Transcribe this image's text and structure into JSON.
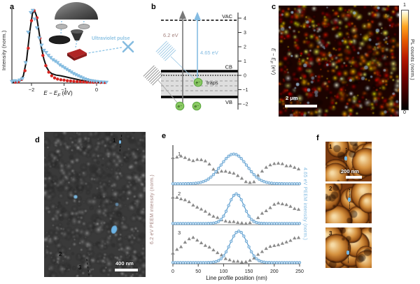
{
  "figure_labels": {
    "a": "a",
    "b": "b",
    "c": "c",
    "d": "d",
    "e": "e",
    "f": "f"
  },
  "panel_a": {
    "ylabel": "Intensity (norm.)",
    "xlabel_pre": "E − E",
    "xlabel_sub": "F",
    "xlabel_post": " (eV)",
    "inset_label": "Ultraviolet pulse"
  },
  "panel_b": {
    "vac": "VAC",
    "cb": "CB",
    "vb": "VB",
    "traps": "traps",
    "electron": "e⁻",
    "arrow_gray_label": "6.2 eV",
    "arrow_blue_label": "4.65 eV",
    "axis_label_pre": "E − E",
    "axis_label_sub": "F",
    "axis_label_post": " (eV)",
    "axis_ticks": [
      "4",
      "3",
      "2",
      "1",
      "0",
      "−1",
      "−2"
    ]
  },
  "panel_c": {
    "scalebar": "2 μm",
    "colorbar_top": "1",
    "colorbar_bottom": "0",
    "colorbar_label": "PL counts (norm.)"
  },
  "panel_d": {
    "marker1": "1",
    "marker2": "2",
    "marker3": "3",
    "scalebar": "400 nm"
  },
  "panel_f": {
    "label1": "1",
    "label2": "2",
    "label3": "3",
    "scalebar": "200 nm"
  },
  "colors": {
    "blue_series": "#8cc2e4",
    "red_series": "#d62420",
    "gray_series": "#8a8a8a",
    "rose_text": "#a5837f",
    "blue_text": "#85bce2",
    "electron_green": "#8ac963"
  },
  "chart_data": [
    {
      "panel": "a",
      "type": "line",
      "xlabel": "E − EF (eV)",
      "ylabel": "Intensity (norm.)",
      "xlim": [
        -2.65,
        0.35
      ],
      "ylim": [
        0,
        1.05
      ],
      "xticks": [
        -2,
        -1,
        0
      ],
      "series": [
        {
          "name": "fit-curve",
          "marker": "line",
          "color": "#111111",
          "points": [
            [
              -2.6,
              0.01
            ],
            [
              -2.45,
              0.015
            ],
            [
              -2.35,
              0.03
            ],
            [
              -2.25,
              0.1
            ],
            [
              -2.15,
              0.32
            ],
            [
              -2.05,
              0.72
            ],
            [
              -1.97,
              0.96
            ],
            [
              -1.91,
              1.0
            ],
            [
              -1.85,
              0.93
            ],
            [
              -1.78,
              0.74
            ],
            [
              -1.7,
              0.5
            ],
            [
              -1.62,
              0.33
            ],
            [
              -1.54,
              0.22
            ],
            [
              -1.46,
              0.16
            ],
            [
              -1.38,
              0.13
            ],
            [
              -1.25,
              0.11
            ],
            [
              -1.1,
              0.1
            ],
            [
              -0.95,
              0.085
            ],
            [
              -0.8,
              0.07
            ],
            [
              -0.65,
              0.055
            ],
            [
              -0.5,
              0.04
            ],
            [
              -0.35,
              0.03
            ],
            [
              -0.2,
              0.02
            ],
            [
              -0.05,
              0.012
            ],
            [
              0.15,
              0.008
            ],
            [
              0.3,
              0.006
            ]
          ]
        },
        {
          "name": "red-circles",
          "marker": "circle",
          "color": "#d62420",
          "points": [
            [
              -2.5,
              0.012
            ],
            [
              -2.4,
              0.02
            ],
            [
              -2.3,
              0.05
            ],
            [
              -2.2,
              0.17
            ],
            [
              -2.1,
              0.48
            ],
            [
              -2.0,
              0.86
            ],
            [
              -1.92,
              1.0
            ],
            [
              -1.83,
              0.9
            ],
            [
              -1.74,
              0.62
            ],
            [
              -1.65,
              0.38
            ],
            [
              -1.56,
              0.24
            ],
            [
              -1.47,
              0.15
            ],
            [
              -1.38,
              0.1
            ],
            [
              -1.29,
              0.07
            ],
            [
              -1.2,
              0.055
            ],
            [
              -1.1,
              0.045
            ],
            [
              -1.0,
              0.04
            ],
            [
              -0.9,
              0.032
            ],
            [
              -0.8,
              0.028
            ],
            [
              -0.7,
              0.024
            ],
            [
              -0.6,
              0.02
            ],
            [
              -0.5,
              0.018
            ],
            [
              -0.4,
              0.015
            ],
            [
              -0.3,
              0.012
            ],
            [
              -0.2,
              0.012
            ],
            [
              -0.1,
              0.01
            ],
            [
              0.0,
              0.01
            ],
            [
              0.12,
              0.008
            ],
            [
              0.25,
              0.008
            ]
          ]
        },
        {
          "name": "blue-triangles",
          "marker": "triangle-down",
          "color": "#8cc2e4",
          "points": [
            [
              -2.6,
              0.02
            ],
            [
              -2.52,
              0.03
            ],
            [
              -2.44,
              0.025
            ],
            [
              -2.36,
              0.04
            ],
            [
              -2.28,
              0.06
            ],
            [
              -2.18,
              0.28
            ],
            [
              -2.1,
              0.7
            ],
            [
              -2.02,
              0.97
            ],
            [
              -1.96,
              1.0
            ],
            [
              -1.9,
              0.88
            ],
            [
              -1.83,
              0.76
            ],
            [
              -1.76,
              0.62
            ],
            [
              -1.69,
              0.52
            ],
            [
              -1.62,
              0.45
            ],
            [
              -1.55,
              0.42
            ],
            [
              -1.48,
              0.38
            ],
            [
              -1.41,
              0.35
            ],
            [
              -1.34,
              0.32
            ],
            [
              -1.27,
              0.3
            ],
            [
              -1.2,
              0.28
            ],
            [
              -1.13,
              0.25
            ],
            [
              -1.06,
              0.23
            ],
            [
              -0.99,
              0.21
            ],
            [
              -0.92,
              0.19
            ],
            [
              -0.85,
              0.17
            ],
            [
              -0.78,
              0.15
            ],
            [
              -0.71,
              0.13
            ],
            [
              -0.64,
              0.115
            ],
            [
              -0.57,
              0.1
            ],
            [
              -0.5,
              0.085
            ],
            [
              -0.43,
              0.07
            ],
            [
              -0.36,
              0.055
            ],
            [
              -0.29,
              0.045
            ],
            [
              -0.22,
              0.035
            ],
            [
              -0.15,
              0.03
            ],
            [
              -0.08,
              0.025
            ],
            [
              0.0,
              0.02
            ],
            [
              0.1,
              0.015
            ],
            [
              0.2,
              0.012
            ],
            [
              0.3,
              0.01
            ]
          ]
        }
      ]
    },
    {
      "panel": "e",
      "type": "line-profiles",
      "xlabel": "Line profile position (nm)",
      "ylabel_left": "6.2 eV PEEM intensity (norm.)",
      "ylabel_right": "4.65 eV PEEM intensity (norm.)",
      "xlim": [
        0,
        250
      ],
      "xticks": [
        0,
        50,
        100,
        150,
        200,
        250
      ],
      "profiles": [
        {
          "label": "1",
          "gray": [
            [
              0,
              0.8
            ],
            [
              10,
              0.82
            ],
            [
              20,
              0.8
            ],
            [
              30,
              0.74
            ],
            [
              40,
              0.7
            ],
            [
              50,
              0.74
            ],
            [
              60,
              0.73
            ],
            [
              70,
              0.62
            ],
            [
              80,
              0.46
            ],
            [
              90,
              0.36
            ],
            [
              100,
              0.4
            ],
            [
              110,
              0.38
            ],
            [
              120,
              0.34
            ],
            [
              130,
              0.26
            ],
            [
              140,
              0.14
            ],
            [
              150,
              0.04
            ],
            [
              160,
              0.1
            ],
            [
              170,
              0.3
            ],
            [
              180,
              0.48
            ],
            [
              190,
              0.58
            ],
            [
              200,
              0.62
            ],
            [
              210,
              0.62
            ],
            [
              220,
              0.58
            ],
            [
              230,
              0.54
            ],
            [
              240,
              0.5
            ],
            [
              250,
              0.44
            ]
          ],
          "blue": {
            "center": 120,
            "sigma": 26,
            "amp": 0.85
          }
        },
        {
          "label": "2",
          "gray": [
            [
              0,
              0.78
            ],
            [
              10,
              0.76
            ],
            [
              20,
              0.72
            ],
            [
              30,
              0.66
            ],
            [
              40,
              0.58
            ],
            [
              50,
              0.5
            ],
            [
              60,
              0.42
            ],
            [
              70,
              0.34
            ],
            [
              80,
              0.26
            ],
            [
              90,
              0.18
            ],
            [
              100,
              0.12
            ],
            [
              110,
              0.09
            ],
            [
              120,
              0.07
            ],
            [
              130,
              0.05
            ],
            [
              140,
              0.04
            ],
            [
              150,
              0.05
            ],
            [
              160,
              0.12
            ],
            [
              170,
              0.24
            ],
            [
              180,
              0.36
            ],
            [
              190,
              0.48
            ],
            [
              200,
              0.58
            ],
            [
              210,
              0.64
            ],
            [
              220,
              0.6
            ],
            [
              230,
              0.52
            ],
            [
              240,
              0.46
            ],
            [
              250,
              0.42
            ]
          ],
          "blue": {
            "center": 125,
            "sigma": 15,
            "amp": 0.85
          }
        },
        {
          "label": "3",
          "gray": [
            [
              0,
              0.3
            ],
            [
              10,
              0.42
            ],
            [
              20,
              0.56
            ],
            [
              30,
              0.7
            ],
            [
              40,
              0.74
            ],
            [
              50,
              0.64
            ],
            [
              60,
              0.55
            ],
            [
              70,
              0.48
            ],
            [
              80,
              0.38
            ],
            [
              90,
              0.3
            ],
            [
              100,
              0.2
            ],
            [
              110,
              0.12
            ],
            [
              120,
              0.08
            ],
            [
              130,
              0.06
            ],
            [
              140,
              0.04
            ],
            [
              150,
              0.06
            ],
            [
              160,
              0.16
            ],
            [
              170,
              0.28
            ],
            [
              180,
              0.4
            ],
            [
              190,
              0.48
            ],
            [
              200,
              0.52
            ],
            [
              210,
              0.56
            ],
            [
              220,
              0.62
            ],
            [
              230,
              0.68
            ],
            [
              240,
              0.72
            ],
            [
              250,
              0.74
            ]
          ],
          "blue": {
            "center": 130,
            "sigma": 17,
            "amp": 0.9
          }
        }
      ]
    }
  ]
}
